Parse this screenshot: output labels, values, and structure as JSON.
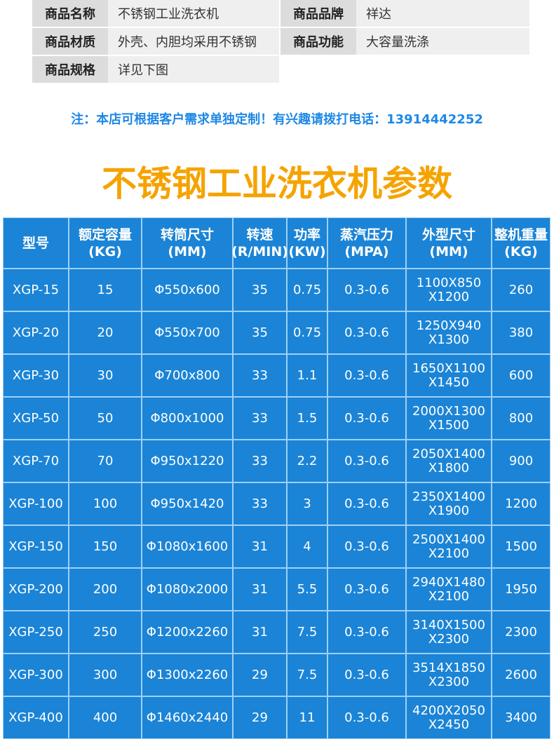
{
  "info": {
    "rows": [
      [
        {
          "label": "商品名称",
          "value": "不锈钢工业洗衣机"
        },
        {
          "label": "商品品牌",
          "value": "祥达"
        }
      ],
      [
        {
          "label": "商品材质",
          "value": "外壳、内胆均采用不锈钢"
        },
        {
          "label": "商品功能",
          "value": "大容量洗涤"
        }
      ],
      [
        {
          "label": "商品规格",
          "value": "详见下图"
        }
      ]
    ]
  },
  "note": "注：本店可根据客户需求单独定制！有兴趣请拨打电话：13914442252",
  "title": "不锈钢工业洗衣机参数",
  "table": {
    "header": [
      [
        "型号"
      ],
      [
        "额定容量",
        "(KG)"
      ],
      [
        "转筒尺寸",
        "(MM)"
      ],
      [
        "转速",
        "(R/MIN)"
      ],
      [
        "功率",
        "(KW)"
      ],
      [
        "蒸汽压力",
        "(MPA)"
      ],
      [
        "外型尺寸",
        "(MM)"
      ],
      [
        "整机重量",
        "(KG)"
      ]
    ],
    "rows": [
      [
        "XGP-15",
        "15",
        "Φ550x600",
        "35",
        "0.75",
        "0.3-0.6",
        [
          "1100X850",
          "X1200"
        ],
        "260"
      ],
      [
        "XGP-20",
        "20",
        "Φ550x700",
        "35",
        "0.75",
        "0.3-0.6",
        [
          "1250X940",
          "X1300"
        ],
        "380"
      ],
      [
        "XGP-30",
        "30",
        "Φ700x800",
        "33",
        "1.1",
        "0.3-0.6",
        [
          "1650X1100",
          "X1450"
        ],
        "600"
      ],
      [
        "XGP-50",
        "50",
        "Φ800x1000",
        "33",
        "1.5",
        "0.3-0.6",
        [
          "2000X1300",
          "X1500"
        ],
        "800"
      ],
      [
        "XGP-70",
        "70",
        "Φ950x1220",
        "33",
        "2.2",
        "0.3-0.6",
        [
          "2050X1400",
          "X1800"
        ],
        "900"
      ],
      [
        "XGP-100",
        "100",
        "Φ950x1420",
        "33",
        "3",
        "0.3-0.6",
        [
          "2350X1400",
          "X1900"
        ],
        "1200"
      ],
      [
        "XGP-150",
        "150",
        "Φ1080x1600",
        "31",
        "4",
        "0.3-0.6",
        [
          "2500X1400",
          "X2100"
        ],
        "1500"
      ],
      [
        "XGP-200",
        "200",
        "Φ1080x2000",
        "31",
        "5.5",
        "0.3-0.6",
        [
          "2940X1480",
          "X2100"
        ],
        "1950"
      ],
      [
        "XGP-250",
        "250",
        "Φ1200x2260",
        "31",
        "7.5",
        "0.3-0.6",
        [
          "3140X1500",
          "X2300"
        ],
        "2300"
      ],
      [
        "XGP-300",
        "300",
        "Φ1300x2260",
        "29",
        "7.5",
        "0.3-0.6",
        [
          "3514X1850",
          "X2300"
        ],
        "2600"
      ],
      [
        "XGP-400",
        "400",
        "Φ1460x2440",
        "29",
        "11",
        "0.3-0.6",
        [
          "4200X2050",
          "X2450"
        ],
        "3400"
      ]
    ]
  }
}
